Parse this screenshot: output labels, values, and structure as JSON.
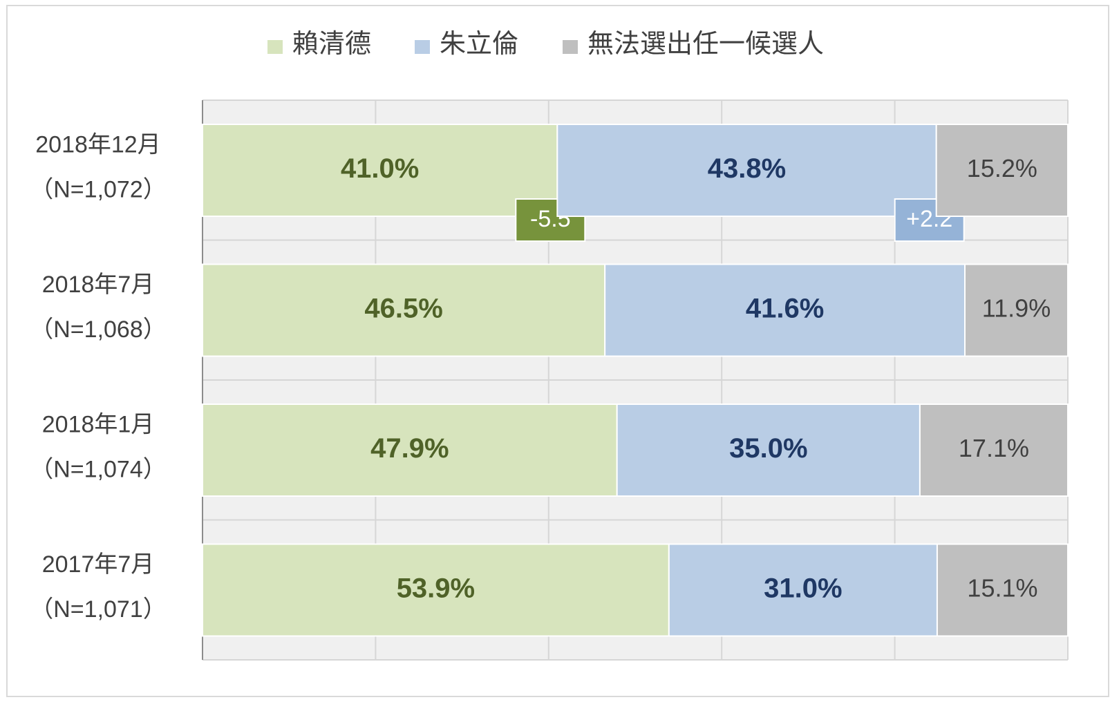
{
  "chart_data": {
    "type": "stacked-bar-horizontal",
    "categories": [
      "2018年12月",
      "2018年7月",
      "2018年1月",
      "2017年7月"
    ],
    "sample_sizes": [
      "（N=1,072）",
      "（N=1,068）",
      "（N=1,074）",
      "（N=1,071）"
    ],
    "series": [
      {
        "name": "賴清德",
        "color": "#d7e4bd",
        "label_color": "#4f6228",
        "values": [
          41.0,
          46.5,
          47.9,
          53.9
        ],
        "value_labels": [
          "41.0%",
          "46.5%",
          "47.9%",
          "53.9%"
        ]
      },
      {
        "name": "朱立倫",
        "color": "#b9cde5",
        "label_color": "#1f3864",
        "values": [
          43.8,
          41.6,
          35.0,
          31.0
        ],
        "value_labels": [
          "43.8%",
          "41.6%",
          "35.0%",
          "31.0%"
        ]
      },
      {
        "name": "無法選出任一候選人",
        "color": "#bfbfbf",
        "label_color": "#404040",
        "values": [
          15.2,
          11.9,
          17.1,
          15.1
        ],
        "value_labels": [
          "15.2%",
          "11.9%",
          "17.1%",
          "15.1%"
        ]
      }
    ],
    "annotations": [
      {
        "label": "-5.5",
        "value": -5.5,
        "color": "#77933c"
      },
      {
        "label": "+2.2",
        "value": 2.2,
        "color": "#95b3d7"
      }
    ],
    "xlim": [
      0,
      100
    ],
    "xticks": [
      0,
      20,
      40,
      60,
      80,
      100
    ],
    "grid": true
  }
}
